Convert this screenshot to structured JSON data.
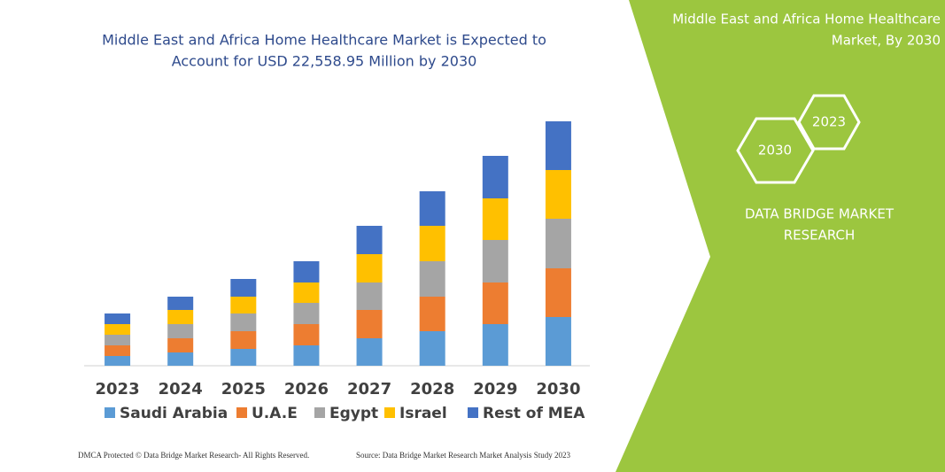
{
  "chart_data": {
    "type": "stacked_bar",
    "title": [
      "Middle East and Africa Home Healthcare Market is Expected to",
      "Account for USD 22,558.95 Million by 2030"
    ],
    "categories": [
      "2023",
      "2024",
      "2025",
      "2026",
      "2027",
      "2028",
      "2029",
      "2030"
    ],
    "series": [
      {
        "name": "Saudi Arabia",
        "color": "#5b9bd5",
        "values": [
          11,
          15,
          19,
          23,
          31,
          39,
          47,
          55
        ]
      },
      {
        "name": "U.A.E",
        "color": "#ed7d31",
        "values": [
          12,
          16,
          20,
          24,
          32,
          39,
          47,
          55
        ]
      },
      {
        "name": "Egypt",
        "color": "#a5a5a5",
        "values": [
          12,
          16,
          20,
          24,
          31,
          40,
          48,
          56
        ]
      },
      {
        "name": "Israel",
        "color": "#ffc000",
        "values": [
          12,
          16,
          19,
          23,
          32,
          40,
          47,
          55
        ]
      },
      {
        "name": "Rest of MEA",
        "color": "#4472c4",
        "values": [
          12,
          15,
          20,
          24,
          32,
          39,
          48,
          55
        ]
      }
    ],
    "ylim": [
      0,
      280
    ]
  },
  "panel": {
    "title": [
      "Middle East and Africa Home Healthcare",
      "Market, By 2030"
    ],
    "hexagons": [
      "2023",
      "2030"
    ],
    "brand": [
      "DATA BRIDGE MARKET",
      "RESEARCH"
    ]
  },
  "footer": {
    "left": "DMCA Protected © Data Bridge Market Research-  All Rights Reserved.",
    "right": "Source: Data Bridge Market Research  Market Analysis Study 2023"
  }
}
